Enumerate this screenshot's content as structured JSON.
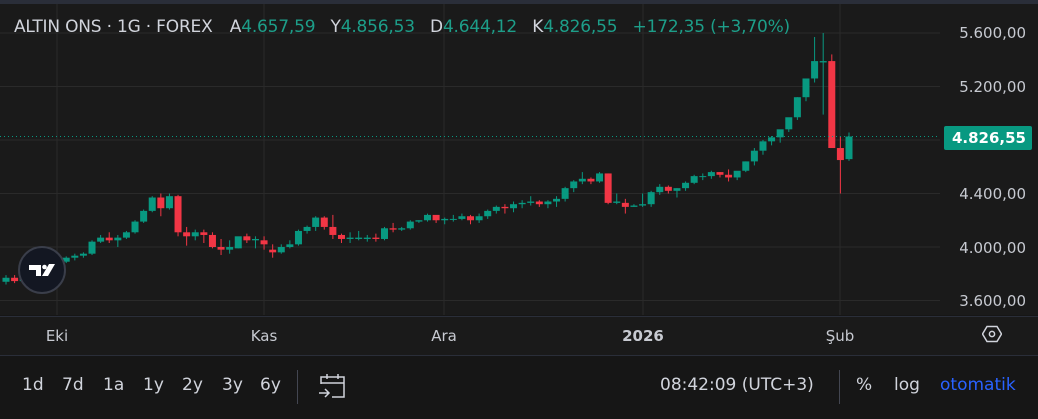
{
  "legend": {
    "symbol": "ALTIN ONS · 1G · FOREX",
    "open_label": "A",
    "open": "4.657,59",
    "high_label": "Y",
    "high": "4.856,53",
    "low_label": "D",
    "low": "4.644,12",
    "close_label": "K",
    "close": "4.826,55",
    "change": "+172,35 (+3,70%)"
  },
  "price_scale": {
    "ticks": [
      "5.600,00",
      "5.200,00",
      "4.400,00",
      "4.000,00",
      "3.600,00"
    ],
    "last_price": "4.826,55"
  },
  "time_axis": {
    "labels": [
      "Eki",
      "Kas",
      "Ara",
      "2026",
      "Şub"
    ]
  },
  "bottom_bar": {
    "ranges": [
      "1d",
      "7d",
      "1a",
      "1y",
      "2y",
      "3y",
      "6y"
    ],
    "time": "08:42:09 (UTC+3)",
    "percent": "%",
    "log": "log",
    "auto": "otomatik"
  },
  "icons": {
    "settings": "settings-hexagon-icon",
    "goto_date": "calendar-goto-icon",
    "logo": "tradingview-logo-icon"
  },
  "colors": {
    "up": "#089981",
    "down": "#f23645",
    "background": "#1a1a1a",
    "grid": "#2a2a2a",
    "accent": "#2962ff"
  },
  "chart_data": {
    "type": "candlestick",
    "title": "ALTIN ONS · 1G · FOREX",
    "xlabel": "",
    "ylabel": "",
    "x_tick_labels": [
      "Eki",
      "Kas",
      "Ara",
      "2026",
      "Şub"
    ],
    "y_tick_labels": [
      3600,
      4000,
      4400,
      5200,
      5600
    ],
    "ylim": [
      3550,
      5650
    ],
    "grid": true,
    "last_price": 4826.55,
    "last_bar": {
      "open": 4657.59,
      "high": 4856.53,
      "low": 4644.12,
      "close": 4826.55,
      "change": 172.35,
      "change_pct": 3.7
    },
    "candles": [
      [
        3740,
        3790,
        3720,
        3770
      ],
      [
        3770,
        3790,
        3730,
        3745
      ],
      [
        3745,
        3770,
        3735,
        3760
      ],
      [
        3760,
        3790,
        3750,
        3780
      ],
      [
        3780,
        3830,
        3770,
        3820
      ],
      [
        3820,
        3870,
        3810,
        3860
      ],
      [
        3860,
        3900,
        3850,
        3890
      ],
      [
        3890,
        3930,
        3880,
        3920
      ],
      [
        3920,
        3950,
        3900,
        3935
      ],
      [
        3935,
        3960,
        3920,
        3950
      ],
      [
        3950,
        4050,
        3940,
        4040
      ],
      [
        4040,
        4090,
        4030,
        4070
      ],
      [
        4070,
        4110,
        4030,
        4050
      ],
      [
        4050,
        4090,
        4000,
        4070
      ],
      [
        4070,
        4120,
        4060,
        4110
      ],
      [
        4110,
        4200,
        4100,
        4190
      ],
      [
        4190,
        4280,
        4180,
        4270
      ],
      [
        4270,
        4380,
        4260,
        4370
      ],
      [
        4370,
        4400,
        4230,
        4290
      ],
      [
        4290,
        4400,
        4280,
        4380
      ],
      [
        4380,
        4390,
        4080,
        4110
      ],
      [
        4110,
        4150,
        4010,
        4080
      ],
      [
        4080,
        4130,
        4050,
        4110
      ],
      [
        4110,
        4130,
        4030,
        4090
      ],
      [
        4090,
        4110,
        3990,
        4000
      ],
      [
        4000,
        4060,
        3940,
        3980
      ],
      [
        3980,
        4050,
        3950,
        4000
      ],
      [
        3990,
        4060,
        3990,
        4080
      ],
      [
        4080,
        4100,
        4030,
        4050
      ],
      [
        4050,
        4080,
        3990,
        4060
      ],
      [
        4050,
        4080,
        3980,
        4020
      ],
      [
        3980,
        4020,
        3920,
        3960
      ],
      [
        3960,
        4020,
        3950,
        4000
      ],
      [
        4000,
        4050,
        3990,
        4020
      ],
      [
        4020,
        4130,
        4010,
        4120
      ],
      [
        4120,
        4160,
        4100,
        4150
      ],
      [
        4150,
        4230,
        4120,
        4220
      ],
      [
        4220,
        4230,
        4130,
        4150
      ],
      [
        4150,
        4240,
        4060,
        4090
      ],
      [
        4090,
        4100,
        4030,
        4060
      ],
      [
        4060,
        4110,
        4030,
        4070
      ],
      [
        4060,
        4120,
        4050,
        4070
      ],
      [
        4060,
        4090,
        4040,
        4070
      ],
      [
        4070,
        4100,
        4040,
        4060
      ],
      [
        4060,
        4150,
        4050,
        4140
      ],
      [
        4140,
        4180,
        4110,
        4130
      ],
      [
        4130,
        4150,
        4120,
        4140
      ],
      [
        4140,
        4200,
        4130,
        4190
      ],
      [
        4190,
        4200,
        4180,
        4200
      ],
      [
        4200,
        4250,
        4190,
        4240
      ],
      [
        4240,
        4230,
        4180,
        4200
      ],
      [
        4200,
        4220,
        4170,
        4210
      ],
      [
        4210,
        4240,
        4190,
        4210
      ],
      [
        4210,
        4250,
        4200,
        4230
      ],
      [
        4230,
        4240,
        4170,
        4200
      ],
      [
        4200,
        4250,
        4180,
        4230
      ],
      [
        4230,
        4280,
        4210,
        4270
      ],
      [
        4270,
        4310,
        4250,
        4300
      ],
      [
        4300,
        4320,
        4250,
        4290
      ],
      [
        4290,
        4340,
        4260,
        4320
      ],
      [
        4320,
        4350,
        4290,
        4330
      ],
      [
        4330,
        4380,
        4310,
        4340
      ],
      [
        4340,
        4350,
        4300,
        4320
      ],
      [
        4320,
        4350,
        4290,
        4340
      ],
      [
        4340,
        4380,
        4300,
        4360
      ],
      [
        4360,
        4450,
        4340,
        4440
      ],
      [
        4440,
        4500,
        4410,
        4490
      ],
      [
        4490,
        4560,
        4470,
        4510
      ],
      [
        4510,
        4520,
        4470,
        4490
      ],
      [
        4490,
        4560,
        4480,
        4550
      ],
      [
        4550,
        4550,
        4320,
        4330
      ],
      [
        4330,
        4400,
        4320,
        4340
      ],
      [
        4330,
        4360,
        4250,
        4300
      ],
      [
        4300,
        4320,
        4300,
        4310
      ],
      [
        4310,
        4400,
        4300,
        4320
      ],
      [
        4320,
        4420,
        4300,
        4410
      ],
      [
        4410,
        4470,
        4390,
        4450
      ],
      [
        4450,
        4460,
        4400,
        4420
      ],
      [
        4420,
        4440,
        4370,
        4440
      ],
      [
        4440,
        4490,
        4420,
        4480
      ],
      [
        4480,
        4540,
        4470,
        4530
      ],
      [
        4530,
        4550,
        4500,
        4530
      ],
      [
        4530,
        4570,
        4510,
        4560
      ],
      [
        4560,
        4560,
        4520,
        4540
      ],
      [
        4540,
        4580,
        4490,
        4520
      ],
      [
        4520,
        4560,
        4500,
        4570
      ],
      [
        4570,
        4640,
        4560,
        4640
      ],
      [
        4640,
        4740,
        4610,
        4720
      ],
      [
        4720,
        4800,
        4690,
        4790
      ],
      [
        4790,
        4830,
        4760,
        4820
      ],
      [
        4820,
        4870,
        4780,
        4880
      ],
      [
        4880,
        4960,
        4860,
        4970
      ],
      [
        4970,
        5120,
        4950,
        5120
      ],
      [
        5120,
        5250,
        5090,
        5260
      ],
      [
        5260,
        5570,
        5230,
        5390
      ],
      [
        5380,
        5600,
        4990,
        5390
      ],
      [
        5390,
        5440,
        4760,
        4740
      ],
      [
        4740,
        4830,
        4400,
        4650
      ],
      [
        4657,
        4856,
        4644,
        4826
      ]
    ]
  }
}
